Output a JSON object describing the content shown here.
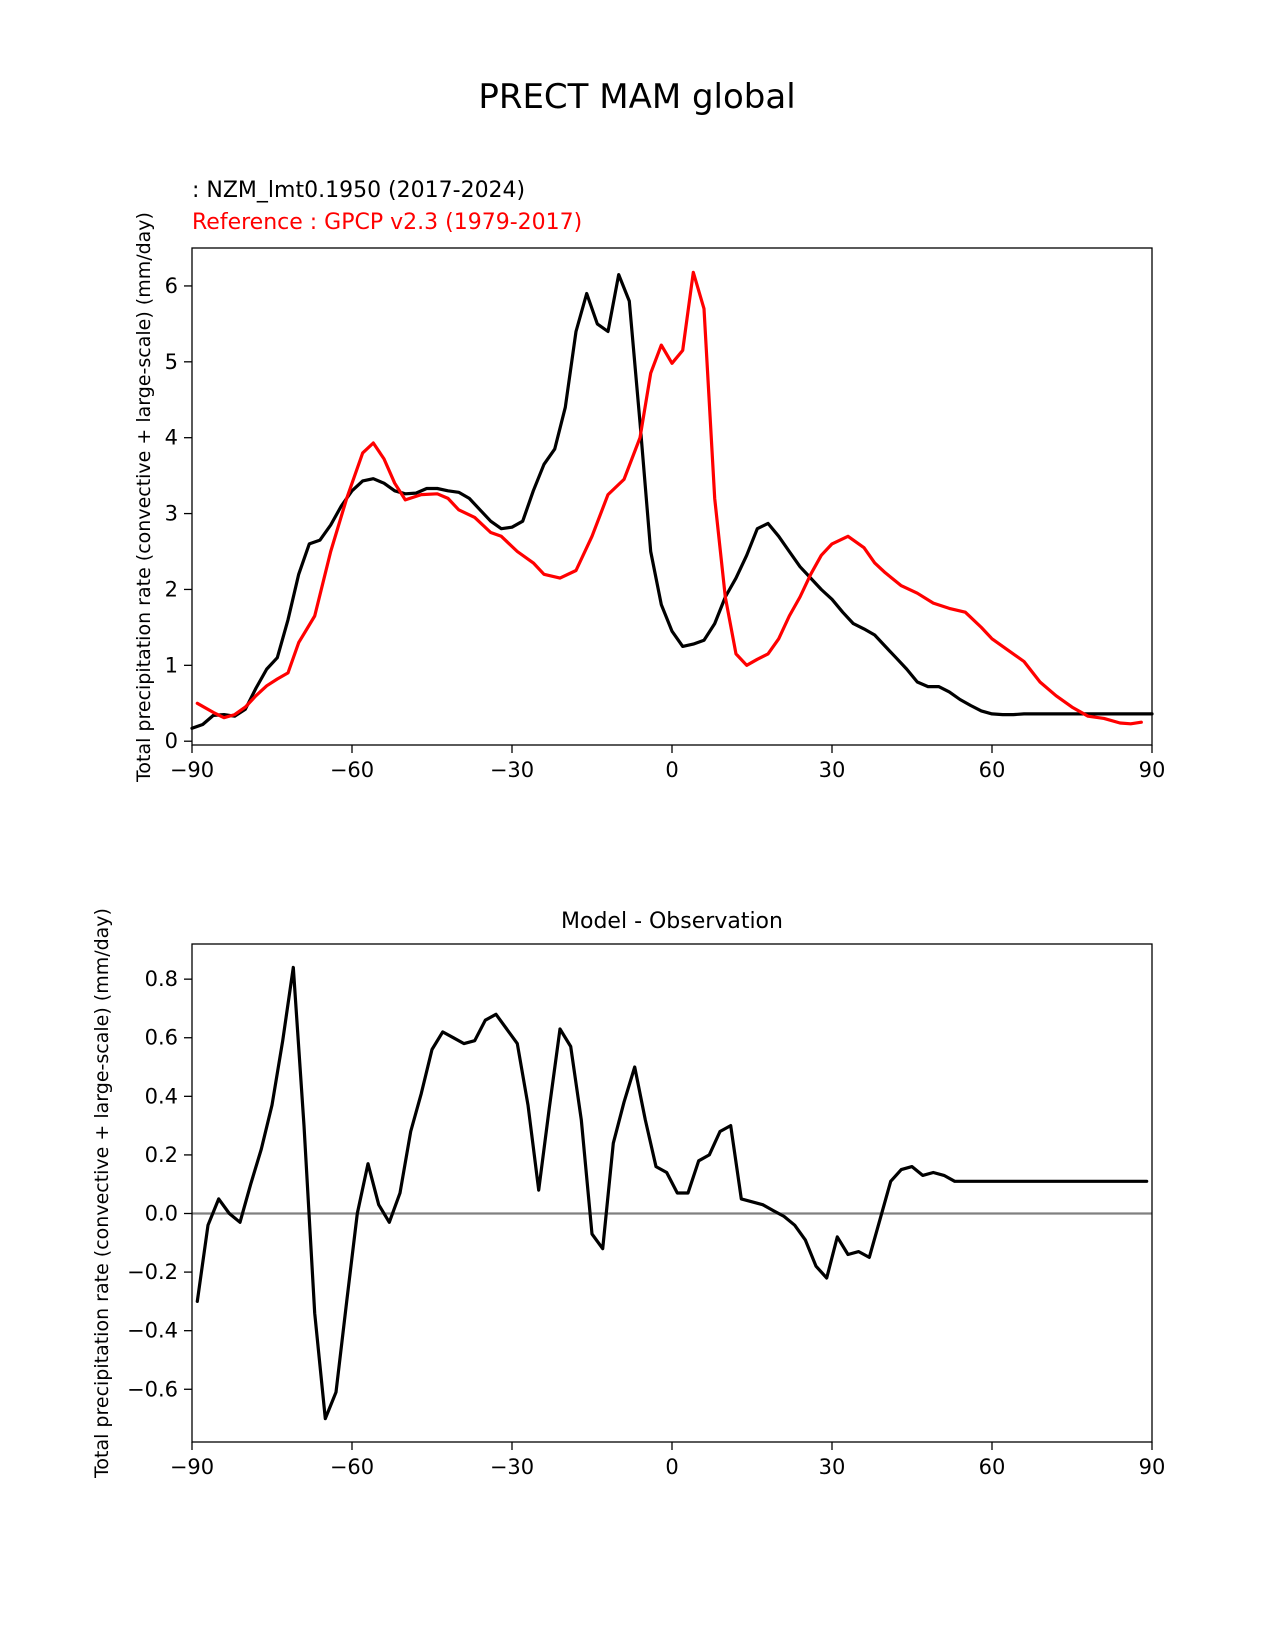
{
  "figure_title": "PRECT MAM global",
  "colors": {
    "model": "#000000",
    "reference": "#ff0000",
    "zero_line": "#808080",
    "axes": "#000000"
  },
  "chart_data": [
    {
      "type": "line",
      "test_label": " : NZM_lmt0.1950 (2017-2024)",
      "reference_label": "Reference : GPCP v2.3 (1979-2017)",
      "ylabel": "Total precipitation rate (convective + large-scale) (mm/day)",
      "xlim": [
        -90,
        90
      ],
      "ylim": [
        -0.05,
        6.5
      ],
      "xticks": [
        -90,
        -60,
        -30,
        0,
        30,
        60,
        90
      ],
      "xtick_labels": [
        "−90",
        "−60",
        "−30",
        "0",
        "30",
        "60",
        "90"
      ],
      "yticks": [
        0,
        1,
        2,
        3,
        4,
        5,
        6
      ],
      "ytick_labels": [
        "0",
        "1",
        "2",
        "3",
        "4",
        "5",
        "6"
      ],
      "series": [
        {
          "name": "NZM_lmt0.1950 (2017-2024)",
          "color": "#000000",
          "x": [
            -90,
            -88,
            -86,
            -84,
            -82,
            -80,
            -78,
            -76,
            -74,
            -72,
            -70,
            -68,
            -66,
            -64,
            -62,
            -60,
            -58,
            -56,
            -54,
            -52,
            -50,
            -48,
            -46,
            -44,
            -42,
            -40,
            -38,
            -36,
            -34,
            -32,
            -30,
            -28,
            -26,
            -24,
            -22,
            -20,
            -18,
            -16,
            -14,
            -12,
            -10,
            -8,
            -6,
            -4,
            -2,
            0,
            2,
            4,
            6,
            8,
            10,
            12,
            14,
            16,
            18,
            20,
            22,
            24,
            26,
            28,
            30,
            32,
            34,
            36,
            38,
            40,
            42,
            44,
            46,
            48,
            50,
            52,
            54,
            56,
            58,
            60,
            62,
            64,
            66,
            68,
            70,
            72,
            74,
            76,
            78,
            80,
            82,
            84,
            86,
            88,
            90
          ],
          "values": [
            0.17,
            0.22,
            0.34,
            0.35,
            0.33,
            0.42,
            0.7,
            0.95,
            1.1,
            1.6,
            2.2,
            2.6,
            2.65,
            2.85,
            3.1,
            3.3,
            3.43,
            3.46,
            3.4,
            3.3,
            3.26,
            3.27,
            3.33,
            3.33,
            3.3,
            3.28,
            3.2,
            3.05,
            2.9,
            2.8,
            2.82,
            2.9,
            3.3,
            3.65,
            3.85,
            4.4,
            5.4,
            5.9,
            5.5,
            5.4,
            6.15,
            5.8,
            4.2,
            2.5,
            1.8,
            1.45,
            1.25,
            1.28,
            1.33,
            1.55,
            1.9,
            2.15,
            2.45,
            2.8,
            2.87,
            2.7,
            2.5,
            2.3,
            2.15,
            2.0,
            1.87,
            1.7,
            1.55,
            1.48,
            1.4,
            1.25,
            1.1,
            0.95,
            0.78,
            0.72,
            0.72,
            0.65,
            0.55,
            0.47,
            0.4,
            0.36,
            0.35,
            0.35,
            0.36,
            0.36,
            0.36,
            0.36,
            0.36,
            0.36,
            0.36,
            0.36,
            0.36,
            0.36,
            0.36,
            0.36,
            0.36
          ]
        },
        {
          "name": "Reference : GPCP v2.3 (1979-2017)",
          "color": "#ff0000",
          "x": [
            -89,
            -86,
            -84,
            -82,
            -80,
            -78,
            -76,
            -74,
            -72,
            -70,
            -67,
            -64,
            -61,
            -58,
            -56,
            -54,
            -52,
            -50,
            -47,
            -44,
            -42,
            -40,
            -37,
            -34,
            -32,
            -29,
            -26,
            -24,
            -21,
            -18,
            -15,
            -12,
            -9,
            -6,
            -4,
            -2,
            0,
            2,
            4,
            6,
            8,
            10,
            12,
            14,
            16,
            18,
            20,
            22,
            24,
            26,
            28,
            30,
            33,
            36,
            38,
            40,
            43,
            46,
            49,
            52,
            55,
            58,
            60,
            63,
            66,
            69,
            72,
            75,
            78,
            81,
            84,
            86,
            88
          ],
          "values": [
            0.5,
            0.38,
            0.31,
            0.35,
            0.45,
            0.6,
            0.73,
            0.82,
            0.9,
            1.3,
            1.65,
            2.5,
            3.2,
            3.8,
            3.93,
            3.72,
            3.4,
            3.18,
            3.25,
            3.26,
            3.2,
            3.05,
            2.95,
            2.75,
            2.7,
            2.5,
            2.35,
            2.2,
            2.15,
            2.25,
            2.7,
            3.25,
            3.45,
            4.0,
            4.85,
            5.22,
            4.98,
            5.15,
            6.18,
            5.7,
            3.2,
            1.9,
            1.15,
            1.0,
            1.08,
            1.15,
            1.35,
            1.65,
            1.9,
            2.2,
            2.45,
            2.6,
            2.7,
            2.55,
            2.35,
            2.22,
            2.05,
            1.95,
            1.82,
            1.75,
            1.7,
            1.5,
            1.35,
            1.2,
            1.05,
            0.78,
            0.6,
            0.45,
            0.33,
            0.3,
            0.24,
            0.23,
            0.25
          ]
        }
      ]
    },
    {
      "type": "line",
      "title": "Model - Observation",
      "ylabel": "Total precipitation rate (convective + large-scale) (mm/day)",
      "xlim": [
        -90,
        90
      ],
      "ylim": [
        -0.78,
        0.92
      ],
      "xticks": [
        -90,
        -60,
        -30,
        0,
        30,
        60,
        90
      ],
      "xtick_labels": [
        "−90",
        "−60",
        "−30",
        "0",
        "30",
        "60",
        "90"
      ],
      "yticks": [
        -0.6,
        -0.4,
        -0.2,
        0.0,
        0.2,
        0.4,
        0.6,
        0.8
      ],
      "ytick_labels": [
        "−0.6",
        "−0.4",
        "−0.2",
        "0.0",
        "0.2",
        "0.4",
        "0.6",
        "0.8"
      ],
      "zero_line": 0.0,
      "series": [
        {
          "name": "Model - Observation",
          "color": "#000000",
          "x": [
            -89,
            -87,
            -85,
            -83,
            -81,
            -79,
            -77,
            -75,
            -73,
            -71,
            -69,
            -67,
            -65,
            -63,
            -61,
            -59,
            -57,
            -55,
            -53,
            -51,
            -49,
            -47,
            -45,
            -43,
            -41,
            -39,
            -37,
            -35,
            -33,
            -31,
            -29,
            -27,
            -25,
            -23,
            -21,
            -19,
            -17,
            -15,
            -13,
            -11,
            -9,
            -7,
            -5,
            -3,
            -1,
            1,
            3,
            5,
            7,
            9,
            11,
            13,
            15,
            17,
            19,
            21,
            23,
            25,
            27,
            29,
            31,
            33,
            35,
            37,
            39,
            41,
            43,
            45,
            47,
            49,
            51,
            53,
            55,
            57,
            59,
            61,
            63,
            65,
            67,
            69,
            71,
            73,
            75,
            77,
            79,
            81,
            83,
            85,
            87,
            89
          ],
          "values": [
            -0.3,
            -0.04,
            0.05,
            0.0,
            -0.03,
            0.1,
            0.22,
            0.37,
            0.59,
            0.84,
            0.3,
            -0.34,
            -0.7,
            -0.61,
            -0.3,
            0.0,
            0.17,
            0.03,
            -0.03,
            0.07,
            0.28,
            0.41,
            0.56,
            0.62,
            0.6,
            0.58,
            0.59,
            0.66,
            0.68,
            0.63,
            0.58,
            0.37,
            0.08,
            0.36,
            0.63,
            0.57,
            0.32,
            -0.07,
            -0.12,
            0.24,
            0.38,
            0.5,
            0.32,
            0.16,
            0.14,
            0.07,
            0.07,
            0.18,
            0.2,
            0.28,
            0.3,
            0.05,
            0.04,
            0.03,
            0.01,
            -0.01,
            -0.04,
            -0.09,
            -0.18,
            -0.22,
            -0.08,
            -0.14,
            -0.13,
            -0.15,
            -0.02,
            0.11,
            0.15,
            0.16,
            0.13,
            0.14,
            0.13,
            0.11,
            0.11,
            0.11,
            0.11,
            0.11,
            0.11,
            0.11,
            0.11,
            0.11,
            0.11,
            0.11,
            0.11,
            0.11,
            0.11,
            0.11,
            0.11,
            0.11,
            0.11,
            0.11
          ]
        }
      ]
    }
  ]
}
